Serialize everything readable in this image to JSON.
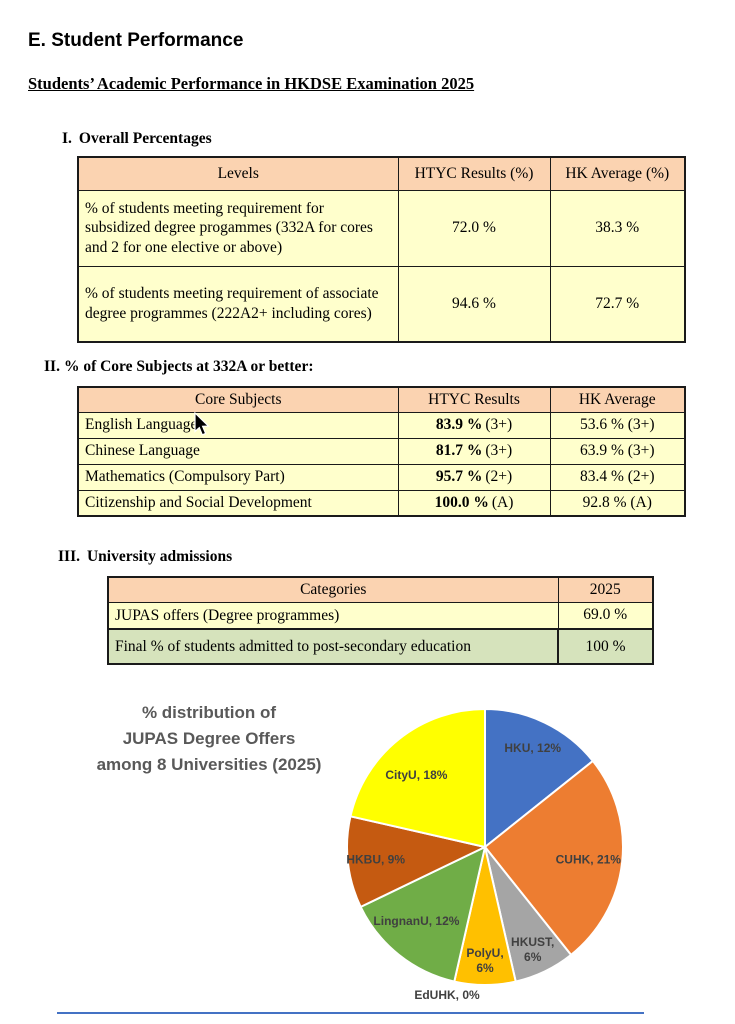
{
  "page": {
    "title": "E. Student Performance",
    "subtitle": "Students’ Academic Performance in HKDSE Examination 2025"
  },
  "sections": {
    "overall": {
      "numeral": "I.",
      "heading": "Overall Percentages",
      "table": {
        "headers": [
          "Levels",
          "HTYC Results (%)",
          "HK Average (%)"
        ],
        "rows": [
          {
            "label": "% of students meeting requirement for subsidized degree progammes (332A for cores and 2 for one elective or above)",
            "htyc": "72.0 %",
            "hk": "38.3 %"
          },
          {
            "label": "% of students meeting requirement of associate degree programmes (222A2+ including cores)",
            "htyc": "94.6 %",
            "hk": "72.7 %"
          }
        ]
      }
    },
    "core": {
      "numeral": "II.",
      "heading": "% of Core Subjects at 332A or better:",
      "table": {
        "headers": [
          "Core Subjects",
          "HTYC Results",
          "HK Average"
        ],
        "rows": [
          {
            "subject": "English Language",
            "htyc": "83.9 %",
            "htyc_grade": "(3+)",
            "hk": "53.6 % (3+)"
          },
          {
            "subject": "Chinese Language",
            "htyc": "81.7 %",
            "htyc_grade": "(3+)",
            "hk": "63.9 % (3+)"
          },
          {
            "subject": "Mathematics (Compulsory Part)",
            "htyc": "95.7 %",
            "htyc_grade": "(2+)",
            "hk": "83.4 % (2+)"
          },
          {
            "subject": "Citizenship and Social Development",
            "htyc": "100.0 %",
            "htyc_grade": "(A)",
            "hk": "92.8 % (A)"
          }
        ]
      }
    },
    "admissions": {
      "numeral": "III.",
      "heading": "University admissions",
      "table": {
        "headers": [
          "Categories",
          "2025"
        ],
        "rows": [
          {
            "label": "JUPAS offers (Degree programmes)",
            "value": "69.0 %",
            "highlight": false
          },
          {
            "label": "Final % of students admitted to post-secondary education",
            "value": "100 %",
            "highlight": true
          }
        ]
      }
    }
  },
  "chart_data": {
    "type": "pie",
    "title": "% distribution of JUPAS Degree Offers among 8 Universities (2025)",
    "title_lines": [
      "% distribution of",
      "JUPAS Degree Offers",
      "among 8 Universities (2025)"
    ],
    "labels": [
      "HKU",
      "CUHK",
      "HKUST",
      "EdUHK",
      "PolyU",
      "LingnanU",
      "HKBU",
      "CityU"
    ],
    "values": [
      12,
      21,
      6,
      0,
      6,
      12,
      9,
      18
    ],
    "unit": "%",
    "label_format": "{name}, {value}%",
    "legend": "none (labels on slices)",
    "colors": [
      "#4472C4",
      "#ED7D31",
      "#A5A5A5",
      "#D9D9D9",
      "#FFC000",
      "#70AD47",
      "#C55A11",
      "#FFFF00"
    ]
  },
  "colors": {
    "table_header_bg": "#FBD3B1",
    "table_body_bg": "#FFFFCC",
    "highlight_row_bg": "#D6E3BC",
    "chart_title_text": "#595959",
    "chart_label_text": "#404040",
    "divider_blue": "#4472C4"
  }
}
